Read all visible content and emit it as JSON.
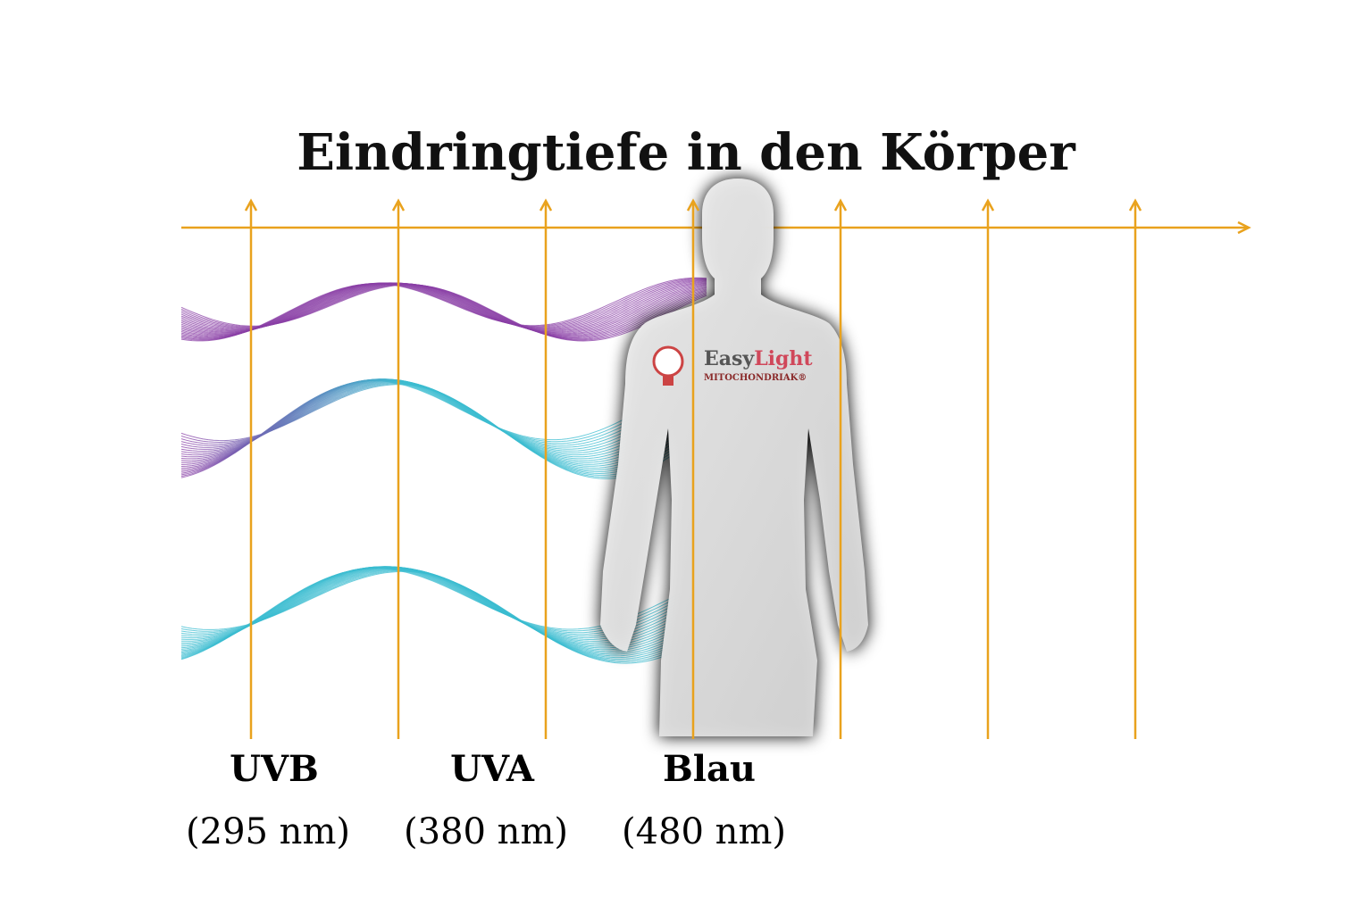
{
  "title": "Eindringtiefe in den Körper",
  "logo": {
    "brand_first": "Easy",
    "brand_second": "Light",
    "tagline": "MITOCHONDRIAK®"
  },
  "labels": [
    {
      "name": "UVB",
      "wavelength": "(295 nm)"
    },
    {
      "name": "UVA",
      "wavelength": "(380 nm)"
    },
    {
      "name": "Blau",
      "wavelength": "(480 nm)"
    }
  ]
}
